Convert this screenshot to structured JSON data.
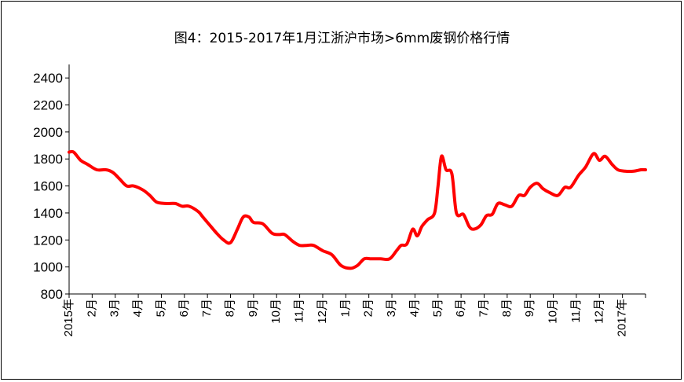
{
  "chart_data": {
    "type": "line",
    "title": "图4：2015-2017年1月江浙沪市场>6mm废钢价格行情",
    "xlabel": "",
    "ylabel": "",
    "ylim": [
      800,
      2500
    ],
    "yticks": [
      800,
      1000,
      1200,
      1400,
      1600,
      1800,
      2000,
      2200,
      2400
    ],
    "xlim": [
      0,
      24
    ],
    "xticks": [
      {
        "x": 0,
        "label": "2015年"
      },
      {
        "x": 1,
        "label": "2月"
      },
      {
        "x": 2,
        "label": "3月"
      },
      {
        "x": 3,
        "label": "4月"
      },
      {
        "x": 4,
        "label": "5月"
      },
      {
        "x": 5,
        "label": "6月"
      },
      {
        "x": 6,
        "label": "7月"
      },
      {
        "x": 7,
        "label": "8月"
      },
      {
        "x": 8,
        "label": "9月"
      },
      {
        "x": 9,
        "label": "10月"
      },
      {
        "x": 10,
        "label": "11月"
      },
      {
        "x": 11,
        "label": "12月"
      },
      {
        "x": 12,
        "label": "1月"
      },
      {
        "x": 13,
        "label": "2月"
      },
      {
        "x": 14,
        "label": "3月"
      },
      {
        "x": 15,
        "label": "4月"
      },
      {
        "x": 16,
        "label": "5月"
      },
      {
        "x": 17,
        "label": "6月"
      },
      {
        "x": 18,
        "label": "7月"
      },
      {
        "x": 19,
        "label": "8月"
      },
      {
        "x": 20,
        "label": "9月"
      },
      {
        "x": 21,
        "label": "10月"
      },
      {
        "x": 22,
        "label": "11月"
      },
      {
        "x": 23,
        "label": "12月"
      },
      {
        "x": 24,
        "label": "2017年"
      }
    ],
    "grid": false,
    "legend": "none",
    "series": [
      {
        "color": "#ff0000",
        "points": [
          [
            0.0,
            1850
          ],
          [
            0.2,
            1850
          ],
          [
            0.5,
            1790
          ],
          [
            0.8,
            1760
          ],
          [
            1.2,
            1720
          ],
          [
            1.6,
            1720
          ],
          [
            1.9,
            1700
          ],
          [
            2.2,
            1650
          ],
          [
            2.5,
            1600
          ],
          [
            2.8,
            1600
          ],
          [
            3.2,
            1570
          ],
          [
            3.5,
            1530
          ],
          [
            3.8,
            1480
          ],
          [
            4.2,
            1470
          ],
          [
            4.6,
            1470
          ],
          [
            4.9,
            1450
          ],
          [
            5.2,
            1450
          ],
          [
            5.6,
            1410
          ],
          [
            5.8,
            1370
          ],
          [
            6.1,
            1310
          ],
          [
            6.4,
            1250
          ],
          [
            6.7,
            1200
          ],
          [
            7.0,
            1180
          ],
          [
            7.3,
            1280
          ],
          [
            7.55,
            1370
          ],
          [
            7.8,
            1370
          ],
          [
            8.0,
            1330
          ],
          [
            8.4,
            1320
          ],
          [
            8.8,
            1250
          ],
          [
            9.1,
            1240
          ],
          [
            9.35,
            1240
          ],
          [
            9.7,
            1190
          ],
          [
            10.0,
            1160
          ],
          [
            10.3,
            1160
          ],
          [
            10.6,
            1160
          ],
          [
            11.0,
            1120
          ],
          [
            11.4,
            1090
          ],
          [
            11.8,
            1010
          ],
          [
            12.2,
            990
          ],
          [
            12.5,
            1010
          ],
          [
            12.8,
            1060
          ],
          [
            13.1,
            1060
          ],
          [
            13.5,
            1060
          ],
          [
            13.9,
            1060
          ],
          [
            14.2,
            1120
          ],
          [
            14.4,
            1160
          ],
          [
            14.65,
            1170
          ],
          [
            14.9,
            1280
          ],
          [
            15.1,
            1230
          ],
          [
            15.3,
            1300
          ],
          [
            15.55,
            1350
          ],
          [
            15.85,
            1400
          ],
          [
            16.0,
            1600
          ],
          [
            16.15,
            1820
          ],
          [
            16.35,
            1720
          ],
          [
            16.6,
            1690
          ],
          [
            16.8,
            1400
          ],
          [
            17.1,
            1390
          ],
          [
            17.35,
            1300
          ],
          [
            17.55,
            1280
          ],
          [
            17.85,
            1310
          ],
          [
            18.1,
            1380
          ],
          [
            18.35,
            1390
          ],
          [
            18.6,
            1470
          ],
          [
            18.9,
            1460
          ],
          [
            19.2,
            1450
          ],
          [
            19.5,
            1530
          ],
          [
            19.75,
            1530
          ],
          [
            20.0,
            1590
          ],
          [
            20.3,
            1620
          ],
          [
            20.55,
            1580
          ],
          [
            20.85,
            1550
          ],
          [
            21.2,
            1530
          ],
          [
            21.5,
            1590
          ],
          [
            21.75,
            1590
          ],
          [
            22.1,
            1680
          ],
          [
            22.4,
            1740
          ],
          [
            22.75,
            1840
          ],
          [
            23.0,
            1790
          ],
          [
            23.25,
            1820
          ],
          [
            23.55,
            1760
          ],
          [
            23.8,
            1720
          ],
          [
            24.1,
            1710
          ],
          [
            24.5,
            1710
          ],
          [
            24.8,
            1720
          ],
          [
            25.0,
            1720
          ]
        ]
      }
    ]
  }
}
